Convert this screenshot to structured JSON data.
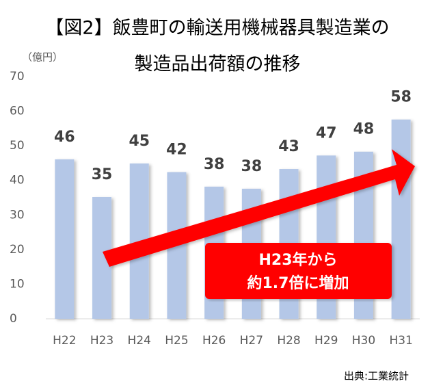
{
  "chart_data": {
    "type": "bar",
    "title": [
      "【図2】飯豊町の輸送用機械器具製造業の",
      "製造品出荷額の推移"
    ],
    "y_unit": "（億円）",
    "categories": [
      "H22",
      "H23",
      "H24",
      "H25",
      "H26",
      "H27",
      "H28",
      "H29",
      "H30",
      "H31"
    ],
    "values": [
      46.1,
      35.2,
      44.9,
      42.4,
      38.2,
      37.6,
      43.3,
      47.2,
      48.3,
      57.6
    ],
    "value_labels": [
      "46",
      "35",
      "45",
      "42",
      "38",
      "38",
      "43",
      "47",
      "48",
      "58"
    ],
    "color": "#b4c7e7",
    "ylim": [
      0,
      70
    ],
    "yticks": [
      0,
      10,
      20,
      30,
      40,
      50,
      60,
      70
    ],
    "grid": false,
    "annotation": [
      "H23年から",
      "約1.7倍に増加"
    ],
    "source": "出典:工業統計"
  }
}
